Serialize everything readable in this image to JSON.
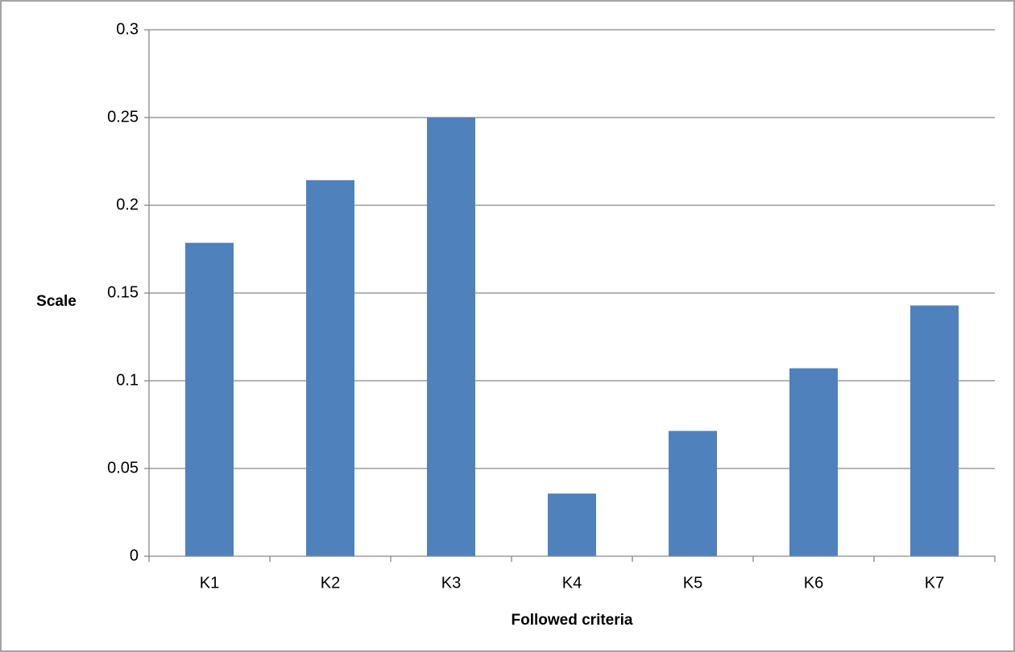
{
  "chart_data": {
    "type": "bar",
    "categories": [
      "K1",
      "K2",
      "K3",
      "K4",
      "K5",
      "K6",
      "K7"
    ],
    "values": [
      0.1786,
      0.2143,
      0.25,
      0.0357,
      0.0714,
      0.1071,
      0.1429
    ],
    "xlabel": "Followed criteria",
    "ylabel": "Scale",
    "ylim": [
      0,
      0.3
    ],
    "yticks": [
      "0",
      "0.05",
      "0.1",
      "0.15",
      "0.2",
      "0.25",
      "0.3"
    ],
    "grid": true,
    "legend": "none",
    "bar_color": "#4f81bd",
    "grid_color": "#868686",
    "frame_color": "#868686"
  }
}
